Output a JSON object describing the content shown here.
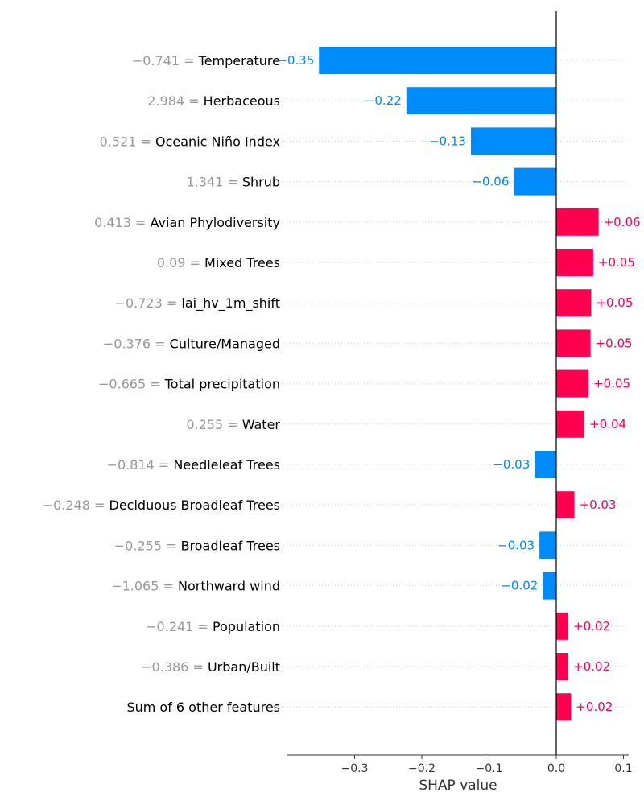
{
  "colors": {
    "positive": "#ff0051",
    "negative": "#008bfb",
    "value_text": "#999999"
  },
  "chart_data": {
    "type": "bar",
    "orientation": "horizontal",
    "xlabel": "SHAP value",
    "xticks": [
      "−0.3",
      "−0.2",
      "−0.1",
      "0.0",
      "0.1"
    ],
    "xlim": [
      -0.4,
      0.105
    ],
    "grid": "dotted horizontal row guides",
    "legend": "none",
    "features": [
      {
        "value": "−0.741 =",
        "name": "Temperature",
        "shap": -0.353,
        "label": "−0.35"
      },
      {
        "value": "2.984 =",
        "name": "Herbaceous",
        "shap": -0.223,
        "label": "−0.22"
      },
      {
        "value": "0.521 =",
        "name": "Oceanic Niño Index",
        "shap": -0.127,
        "label": "−0.13"
      },
      {
        "value": "1.341 =",
        "name": "Shrub",
        "shap": -0.063,
        "label": "−0.06"
      },
      {
        "value": "0.413 =",
        "name": "Avian Phylodiversity",
        "shap": 0.063,
        "label": "+0.06"
      },
      {
        "value": "0.09 =",
        "name": "Mixed Trees",
        "shap": 0.055,
        "label": "+0.05"
      },
      {
        "value": "−0.723 =",
        "name": "lai_hv_1m_shift",
        "shap": 0.052,
        "label": "+0.05"
      },
      {
        "value": "−0.376 =",
        "name": "Culture/Managed",
        "shap": 0.051,
        "label": "+0.05"
      },
      {
        "value": "−0.665 =",
        "name": "Total precipitation",
        "shap": 0.048,
        "label": "+0.05"
      },
      {
        "value": "0.255 =",
        "name": "Water",
        "shap": 0.042,
        "label": "+0.04"
      },
      {
        "value": "−0.814 =",
        "name": "Needleleaf Trees",
        "shap": -0.032,
        "label": "−0.03"
      },
      {
        "value": "−0.248 =",
        "name": "Deciduous Broadleaf Trees",
        "shap": 0.027,
        "label": "+0.03"
      },
      {
        "value": "−0.255 =",
        "name": "Broadleaf Trees",
        "shap": -0.025,
        "label": "−0.03"
      },
      {
        "value": "−1.065 =",
        "name": "Northward wind",
        "shap": -0.02,
        "label": "−0.02"
      },
      {
        "value": "−0.241 =",
        "name": "Population",
        "shap": 0.018,
        "label": "+0.02"
      },
      {
        "value": "−0.386 =",
        "name": "Urban/Built",
        "shap": 0.018,
        "label": "+0.02"
      },
      {
        "value": "",
        "name": "Sum of 6 other features",
        "shap": 0.022,
        "label": "+0.02"
      }
    ]
  }
}
